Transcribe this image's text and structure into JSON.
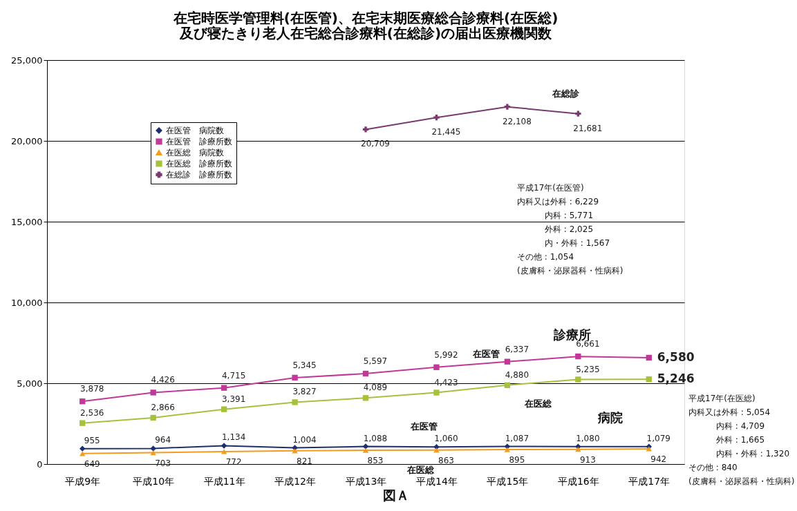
{
  "chart_data": {
    "type": "line",
    "title": [
      "在宅時医学管理料(在医管)、在宅末期医療総合診療料(在医総)",
      "及び寝たきり老人在宅総合診療料(在総診)の届出医療機関数"
    ],
    "categories": [
      "平成9年",
      "平成10年",
      "平成11年",
      "平成12年",
      "平成13年",
      "平成14年",
      "平成15年",
      "平成16年",
      "平成17年"
    ],
    "series": [
      {
        "name": "在医管　病院数",
        "color": "#1f2f6b",
        "marker": "diamond",
        "values": [
          955,
          964,
          1134,
          1004,
          1088,
          1060,
          1087,
          1080,
          1079
        ],
        "value_labels": [
          "955",
          "964",
          "1,134",
          "1,004",
          "1,088",
          "1,060",
          "1,087",
          "1,080",
          "1,079"
        ]
      },
      {
        "name": "在医管　診療所数",
        "color": "#c0399a",
        "marker": "square",
        "values": [
          3878,
          4426,
          4715,
          5345,
          5597,
          5992,
          6337,
          6661,
          6580
        ],
        "value_labels": [
          "3,878",
          "4,426",
          "4,715",
          "5,345",
          "5,597",
          "5,992",
          "6,337",
          "6,661",
          "6,580"
        ]
      },
      {
        "name": "在医総　病院数",
        "color": "#f39c1f",
        "marker": "triangle",
        "values": [
          649,
          703,
          772,
          821,
          853,
          863,
          895,
          913,
          942
        ],
        "value_labels": [
          "649",
          "703",
          "772",
          "821",
          "853",
          "863",
          "895",
          "913",
          "942"
        ]
      },
      {
        "name": "在医総　診療所数",
        "color": "#a6c23a",
        "marker": "square",
        "values": [
          2536,
          2866,
          3391,
          3827,
          4089,
          4423,
          4880,
          5235,
          5246
        ],
        "value_labels": [
          "2,536",
          "2,866",
          "3,391",
          "3,827",
          "4,089",
          "4,423",
          "4,880",
          "5,235",
          "5,246"
        ]
      },
      {
        "name": "在総診　診療所数",
        "color": "#7a3a6e",
        "marker": "cross",
        "values": [
          null,
          null,
          null,
          null,
          20709,
          21445,
          22108,
          21681,
          null
        ],
        "value_labels": [
          null,
          null,
          null,
          null,
          "20,709",
          "21,445",
          "22,108",
          "21,681",
          null
        ]
      }
    ],
    "ylim": [
      0,
      25000
    ],
    "yticks": [
      {
        "value": 0,
        "label": "0"
      },
      {
        "value": 5000,
        "label": "5,000"
      },
      {
        "value": 10000,
        "label": "10,000"
      },
      {
        "value": 15000,
        "label": "15,000"
      },
      {
        "value": 20000,
        "label": "20,000"
      },
      {
        "value": 25000,
        "label": "25,000"
      }
    ],
    "grid": "y",
    "legend": "top left",
    "line_style": "solid",
    "annotations": [
      "在総診",
      "診療所",
      "病院",
      "在医管",
      "在医総",
      "在医管",
      "在医総",
      "平成17年(在医管)\n内科又は外科 : 6,229\n内科 : 5,771\n外科 : 2,025\n内・外科 : 1,567\nその他 : 1,054\n(皮膚科・泌尿器科・性病科)",
      "平成17年(在医総)\n内科又は外科 : 5,054\n内科 : 4,709\n外科 : 1,665\n内科・外科 : 1,320\nその他 : 840\n(皮膚科・泌尿器科・性病科)",
      "図Ａ"
    ]
  }
}
